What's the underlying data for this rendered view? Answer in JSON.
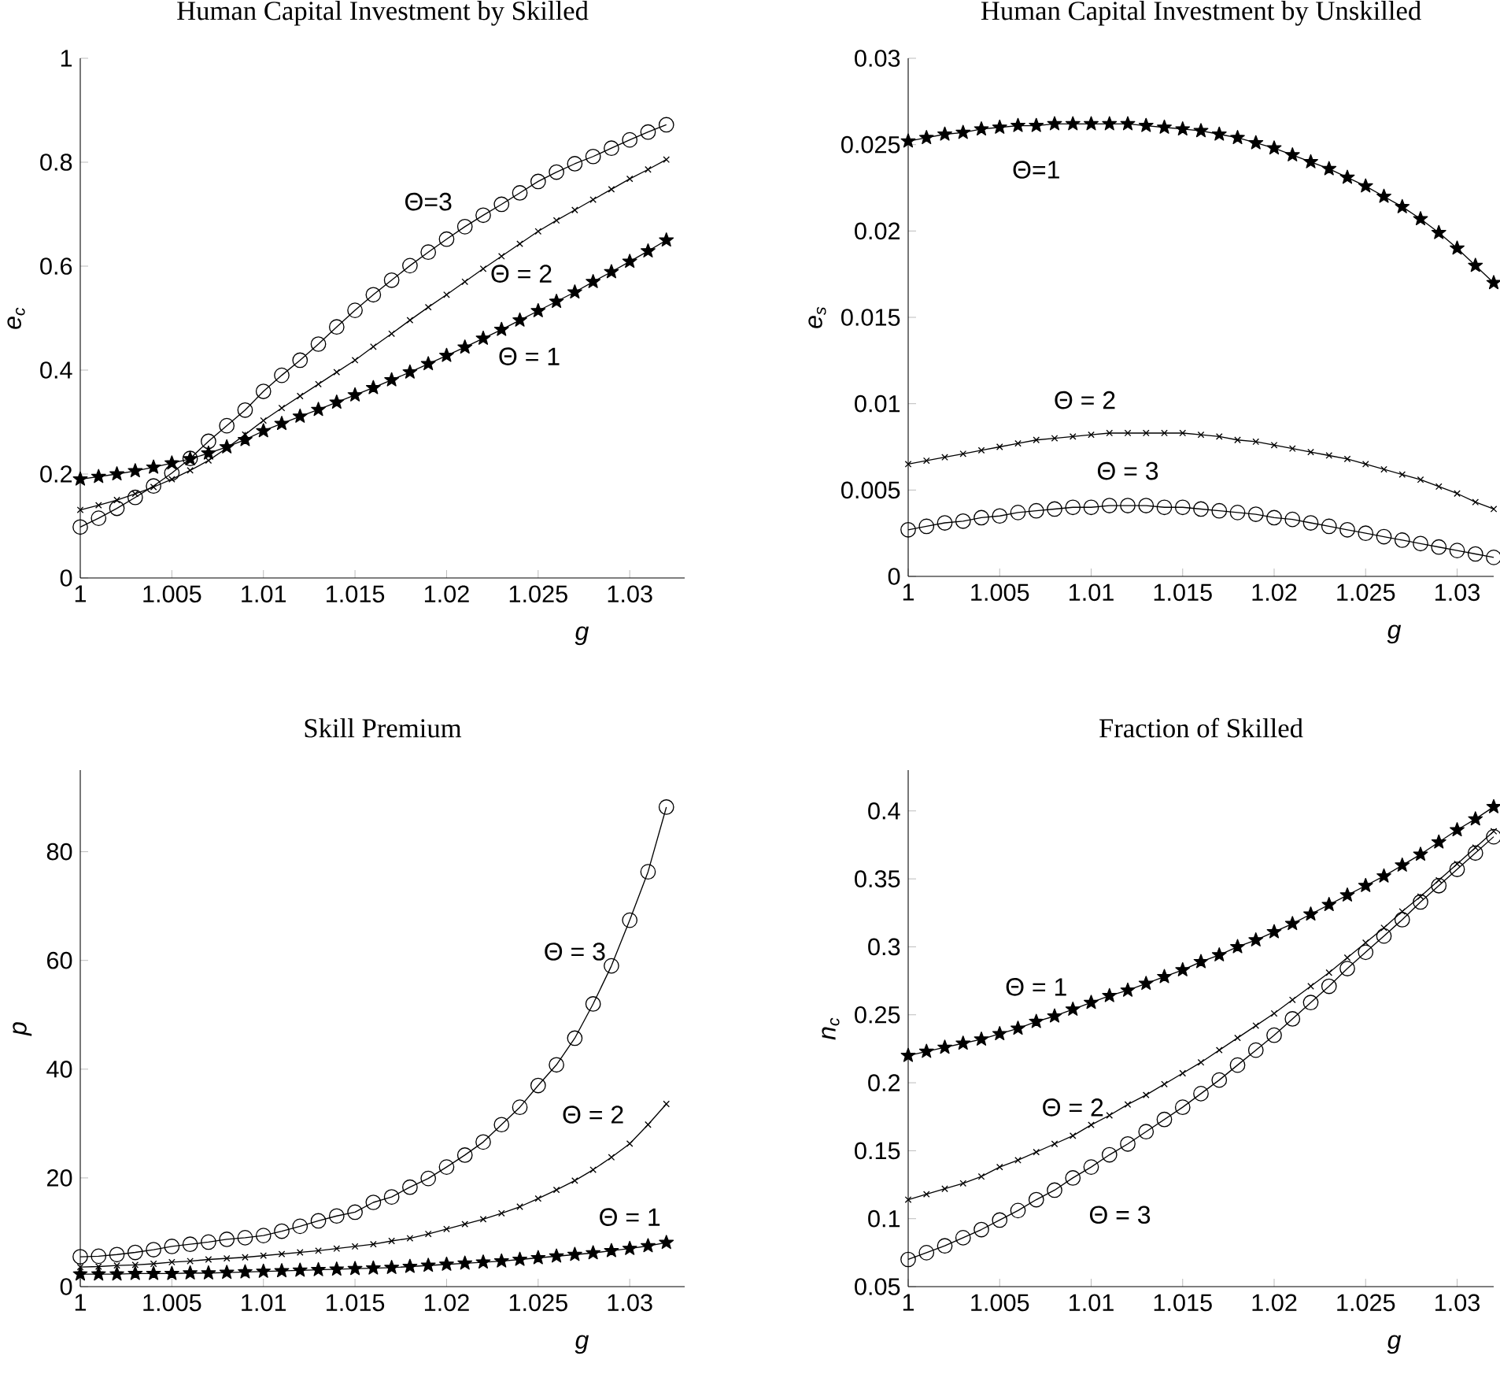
{
  "chart_data": [
    {
      "type": "line",
      "title": "Human Capital Investment by Skilled",
      "xlabel": "g",
      "ylabel": "e$_{c}$",
      "x": [
        1,
        1.001,
        1.002,
        1.003,
        1.004,
        1.005,
        1.006,
        1.007,
        1.008,
        1.009,
        1.01,
        1.011,
        1.012,
        1.013,
        1.014,
        1.015,
        1.016,
        1.017,
        1.018,
        1.019,
        1.02,
        1.021,
        1.022,
        1.023,
        1.024,
        1.025,
        1.026,
        1.027,
        1.028,
        1.029,
        1.03,
        1.031,
        1.032
      ],
      "xlim": [
        1,
        1.033
      ],
      "xticks": [
        1,
        1.005,
        1.01,
        1.015,
        1.02,
        1.025,
        1.03
      ],
      "ylim": [
        0,
        1
      ],
      "yticks": [
        0,
        0.2,
        0.4,
        0.6,
        0.8,
        1
      ],
      "series": [
        {
          "name": "Θ = 1",
          "color": "#000000",
          "marker": "star",
          "values": [
            0.19,
            0.195,
            0.2,
            0.206,
            0.213,
            0.221,
            0.229,
            0.24,
            0.252,
            0.266,
            0.283,
            0.297,
            0.311,
            0.324,
            0.338,
            0.352,
            0.366,
            0.381,
            0.396,
            0.412,
            0.428,
            0.444,
            0.461,
            0.478,
            0.496,
            0.514,
            0.532,
            0.55,
            0.57,
            0.589,
            0.609,
            0.629,
            0.65
          ]
        },
        {
          "name": "Θ = 2",
          "color": "#000000",
          "marker": "cross",
          "values": [
            0.131,
            0.14,
            0.15,
            0.162,
            0.175,
            0.19,
            0.207,
            0.226,
            0.25,
            0.276,
            0.303,
            0.327,
            0.35,
            0.373,
            0.396,
            0.419,
            0.445,
            0.47,
            0.496,
            0.521,
            0.545,
            0.57,
            0.595,
            0.619,
            0.643,
            0.667,
            0.688,
            0.708,
            0.728,
            0.748,
            0.768,
            0.786,
            0.805
          ]
        },
        {
          "name": "Θ=3",
          "color": "#000000",
          "marker": "circle",
          "values": [
            0.098,
            0.115,
            0.134,
            0.155,
            0.177,
            0.202,
            0.23,
            0.263,
            0.293,
            0.323,
            0.359,
            0.39,
            0.419,
            0.45,
            0.483,
            0.515,
            0.545,
            0.573,
            0.601,
            0.627,
            0.652,
            0.676,
            0.698,
            0.719,
            0.741,
            0.763,
            0.781,
            0.797,
            0.811,
            0.827,
            0.843,
            0.858,
            0.872
          ]
        }
      ]
    },
    {
      "type": "line",
      "title": "Human Capital Investment by Unskilled",
      "xlabel": "g",
      "ylabel": "e$_{s}$",
      "x": [
        1,
        1.001,
        1.002,
        1.003,
        1.004,
        1.005,
        1.006,
        1.007,
        1.008,
        1.009,
        1.01,
        1.011,
        1.012,
        1.013,
        1.014,
        1.015,
        1.016,
        1.017,
        1.018,
        1.019,
        1.02,
        1.021,
        1.022,
        1.023,
        1.024,
        1.025,
        1.026,
        1.027,
        1.028,
        1.029,
        1.03,
        1.031,
        1.032
      ],
      "xlim": [
        1,
        1.032
      ],
      "xticks": [
        1,
        1.005,
        1.01,
        1.015,
        1.02,
        1.025,
        1.03
      ],
      "ylim": [
        0,
        0.03
      ],
      "yticks": [
        0,
        0.005,
        0.01,
        0.015,
        0.02,
        0.025,
        0.03
      ],
      "series": [
        {
          "name": "Θ=1",
          "color": "#000000",
          "marker": "star",
          "values": [
            0.0252,
            0.0254,
            0.0256,
            0.0257,
            0.0259,
            0.026,
            0.0261,
            0.0261,
            0.0262,
            0.0262,
            0.0262,
            0.0262,
            0.0262,
            0.0261,
            0.026,
            0.0259,
            0.0258,
            0.0256,
            0.0254,
            0.0251,
            0.0248,
            0.0244,
            0.024,
            0.0236,
            0.0231,
            0.0226,
            0.022,
            0.0214,
            0.0207,
            0.0199,
            0.019,
            0.018,
            0.017
          ]
        },
        {
          "name": "Θ = 2",
          "color": "#000000",
          "marker": "cross",
          "values": [
            0.0065,
            0.0067,
            0.0069,
            0.0071,
            0.0073,
            0.0075,
            0.0077,
            0.0079,
            0.008,
            0.0081,
            0.0082,
            0.0083,
            0.0083,
            0.0083,
            0.0083,
            0.0083,
            0.0082,
            0.0081,
            0.0079,
            0.0078,
            0.0076,
            0.0074,
            0.0072,
            0.007,
            0.0068,
            0.0065,
            0.0062,
            0.0059,
            0.0056,
            0.0052,
            0.0048,
            0.0043,
            0.0039
          ]
        },
        {
          "name": "Θ = 3",
          "color": "#000000",
          "marker": "circle",
          "values": [
            0.0027,
            0.0029,
            0.0031,
            0.0032,
            0.0034,
            0.0035,
            0.0037,
            0.0038,
            0.0039,
            0.004,
            0.004,
            0.0041,
            0.0041,
            0.0041,
            0.004,
            0.004,
            0.0039,
            0.0038,
            0.0037,
            0.0036,
            0.0034,
            0.0033,
            0.0031,
            0.0029,
            0.0027,
            0.0025,
            0.0023,
            0.0021,
            0.0019,
            0.0017,
            0.0015,
            0.0013,
            0.0011
          ]
        }
      ]
    },
    {
      "type": "line",
      "title": "Skill Premium",
      "xlabel": "g",
      "ylabel": "p",
      "x": [
        1,
        1.001,
        1.002,
        1.003,
        1.004,
        1.005,
        1.006,
        1.007,
        1.008,
        1.009,
        1.01,
        1.011,
        1.012,
        1.013,
        1.014,
        1.015,
        1.016,
        1.017,
        1.018,
        1.019,
        1.02,
        1.021,
        1.022,
        1.023,
        1.024,
        1.025,
        1.026,
        1.027,
        1.028,
        1.029,
        1.03,
        1.031,
        1.032
      ],
      "xlim": [
        1,
        1.033
      ],
      "xticks": [
        1,
        1.005,
        1.01,
        1.015,
        1.02,
        1.025,
        1.03
      ],
      "ylim": [
        0,
        95
      ],
      "yticks": [
        0,
        20,
        40,
        60,
        80
      ],
      "series": [
        {
          "name": "Θ = 1",
          "color": "#000000",
          "marker": "star",
          "values": [
            2.3,
            2.3,
            2.3,
            2.4,
            2.4,
            2.4,
            2.5,
            2.5,
            2.6,
            2.7,
            2.8,
            2.9,
            3.0,
            3.1,
            3.2,
            3.3,
            3.4,
            3.5,
            3.7,
            3.9,
            4.1,
            4.3,
            4.5,
            4.7,
            5.0,
            5.3,
            5.6,
            5.9,
            6.2,
            6.6,
            7.0,
            7.5,
            8.1
          ]
        },
        {
          "name": "Θ = 2",
          "color": "#000000",
          "marker": "cross",
          "values": [
            3.6,
            3.7,
            3.9,
            4.0,
            4.2,
            4.5,
            4.7,
            5.0,
            5.2,
            5.4,
            5.7,
            6.0,
            6.3,
            6.6,
            7.0,
            7.4,
            7.8,
            8.4,
            8.9,
            9.7,
            10.6,
            11.5,
            12.4,
            13.5,
            14.7,
            16.2,
            17.8,
            19.5,
            21.5,
            23.8,
            26.3,
            29.8,
            33.6
          ]
        },
        {
          "name": "Θ = 3",
          "color": "#000000",
          "marker": "circle",
          "values": [
            5.5,
            5.6,
            5.9,
            6.3,
            6.8,
            7.4,
            7.8,
            8.2,
            8.7,
            9.0,
            9.4,
            10.2,
            11.1,
            12.1,
            13.0,
            13.7,
            15.5,
            16.5,
            18.3,
            19.9,
            22.0,
            24.2,
            26.6,
            29.8,
            33.0,
            37.0,
            40.8,
            45.7,
            52.0,
            59.0,
            67.4,
            76.3,
            88.2
          ]
        }
      ]
    },
    {
      "type": "line",
      "title": "Fraction of Skilled",
      "xlabel": "g",
      "ylabel": "n$_{c}$",
      "x": [
        1,
        1.001,
        1.002,
        1.003,
        1.004,
        1.005,
        1.006,
        1.007,
        1.008,
        1.009,
        1.01,
        1.011,
        1.012,
        1.013,
        1.014,
        1.015,
        1.016,
        1.017,
        1.018,
        1.019,
        1.02,
        1.021,
        1.022,
        1.023,
        1.024,
        1.025,
        1.026,
        1.027,
        1.028,
        1.029,
        1.03,
        1.031,
        1.032
      ],
      "xlim": [
        1,
        1.032
      ],
      "xticks": [
        1,
        1.005,
        1.01,
        1.015,
        1.02,
        1.025,
        1.03
      ],
      "ylim": [
        0.05,
        0.43
      ],
      "yticks": [
        0.05,
        0.1,
        0.15,
        0.2,
        0.25,
        0.3,
        0.35,
        0.4
      ],
      "series": [
        {
          "name": "Θ = 1",
          "color": "#000000",
          "marker": "star",
          "values": [
            0.22,
            0.223,
            0.226,
            0.229,
            0.232,
            0.236,
            0.24,
            0.245,
            0.249,
            0.254,
            0.259,
            0.264,
            0.268,
            0.273,
            0.278,
            0.283,
            0.289,
            0.294,
            0.3,
            0.305,
            0.311,
            0.317,
            0.324,
            0.331,
            0.338,
            0.345,
            0.352,
            0.36,
            0.368,
            0.377,
            0.386,
            0.394,
            0.403
          ]
        },
        {
          "name": "Θ = 2",
          "color": "#000000",
          "marker": "cross",
          "values": [
            0.114,
            0.118,
            0.122,
            0.126,
            0.131,
            0.138,
            0.143,
            0.149,
            0.155,
            0.161,
            0.169,
            0.176,
            0.184,
            0.191,
            0.199,
            0.207,
            0.215,
            0.224,
            0.233,
            0.242,
            0.251,
            0.261,
            0.271,
            0.281,
            0.292,
            0.303,
            0.314,
            0.326,
            0.337,
            0.349,
            0.361,
            0.373,
            0.385
          ]
        },
        {
          "name": "Θ = 3",
          "color": "#000000",
          "marker": "circle",
          "values": [
            0.07,
            0.075,
            0.08,
            0.086,
            0.092,
            0.099,
            0.106,
            0.114,
            0.121,
            0.13,
            0.138,
            0.147,
            0.155,
            0.164,
            0.173,
            0.182,
            0.192,
            0.202,
            0.213,
            0.224,
            0.235,
            0.247,
            0.259,
            0.271,
            0.284,
            0.296,
            0.308,
            0.32,
            0.333,
            0.345,
            0.357,
            0.369,
            0.381
          ]
        }
      ]
    }
  ]
}
